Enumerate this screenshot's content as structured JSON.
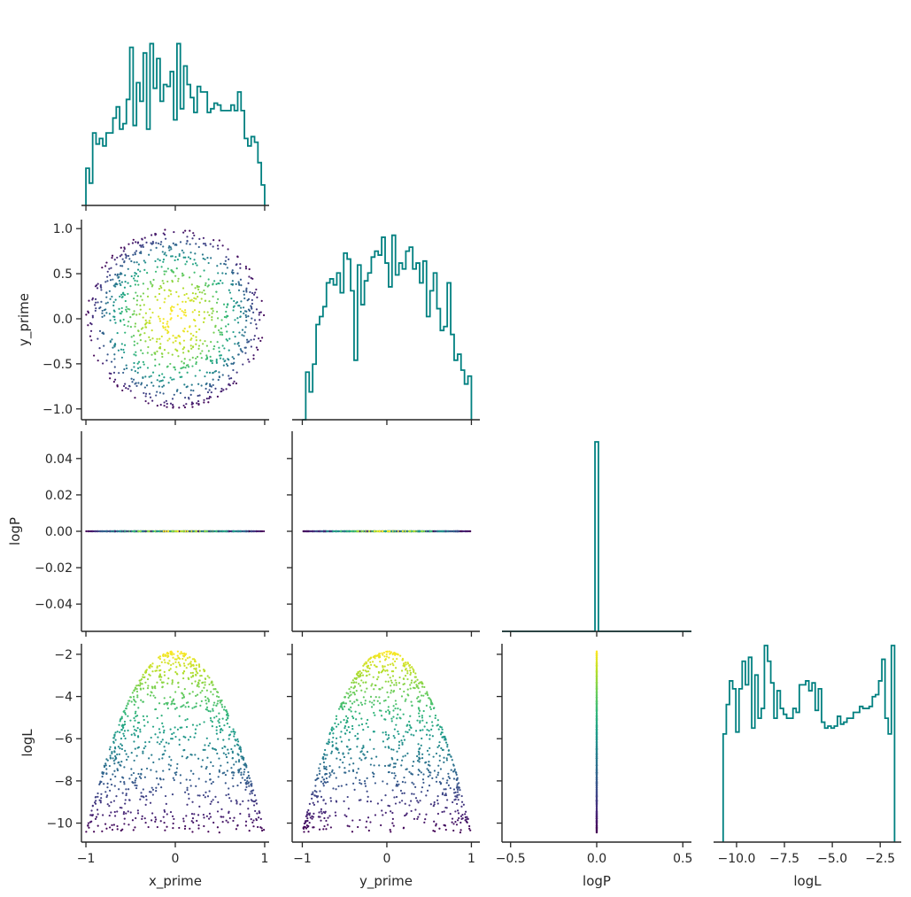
{
  "chart_data": {
    "type": "scatter",
    "layout": "corner-plot",
    "colormap": "viridis",
    "hist_color": "#008080",
    "spine_color": "#262626",
    "grid": false,
    "variables": [
      "x_prime",
      "y_prime",
      "logP",
      "logL"
    ],
    "axis_labels": {
      "x_prime": "x_prime",
      "y_prime": "y_prime",
      "logP": "logP",
      "logL": "logL"
    },
    "ranges": {
      "x_prime": [
        -1.05,
        1.05
      ],
      "y_prime": [
        -1.12,
        1.1
      ],
      "logP": [
        -0.055,
        0.055
      ],
      "logL": [
        -10.9,
        -1.5
      ]
    },
    "hist_ranges": {
      "logP": [
        -0.55,
        0.55
      ],
      "logL": [
        -11.2,
        -1.4
      ]
    },
    "ticks": {
      "x_prime": [
        {
          "v": -1,
          "label": "−1"
        },
        {
          "v": 0,
          "label": "0"
        },
        {
          "v": 1,
          "label": "1"
        }
      ],
      "y_prime": [
        {
          "v": 1.0,
          "label": "1.0"
        },
        {
          "v": 0.5,
          "label": "0.5"
        },
        {
          "v": 0.0,
          "label": "0.0"
        },
        {
          "v": -0.5,
          "label": "−0.5"
        },
        {
          "v": -1.0,
          "label": "−1.0"
        }
      ],
      "logP_y": [
        {
          "v": 0.04,
          "label": "0.04"
        },
        {
          "v": 0.02,
          "label": "0.02"
        },
        {
          "v": 0.0,
          "label": "0.00"
        },
        {
          "v": -0.02,
          "label": "−0.02"
        },
        {
          "v": -0.04,
          "label": "−0.04"
        }
      ],
      "logP_x": [
        {
          "v": -0.5,
          "label": "−0.5"
        },
        {
          "v": 0.0,
          "label": "0.0"
        },
        {
          "v": 0.5,
          "label": "0.5"
        }
      ],
      "logL_y": [
        {
          "v": -2,
          "label": "−2"
        },
        {
          "v": -4,
          "label": "−4"
        },
        {
          "v": -6,
          "label": "−6"
        },
        {
          "v": -8,
          "label": "−8"
        },
        {
          "v": -10,
          "label": "−10"
        }
      ],
      "logL_x": [
        {
          "v": -10.0,
          "label": "−10.0"
        },
        {
          "v": -7.5,
          "label": "−7.5"
        },
        {
          "v": -5.0,
          "label": "−5.0"
        },
        {
          "v": -2.5,
          "label": "−2.5"
        }
      ]
    },
    "samples": {
      "count": 1000,
      "distribution": "uniform-disk",
      "radius": 1.0,
      "logP_value": 0.0,
      "logL_formula": "-1.85 - 8.6 * (x_prime^2 + y_prime^2)"
    },
    "histograms": {
      "x_prime": {
        "edges": [
          -1.0,
          1.0
        ],
        "counts": [
          0.2,
          0.12,
          0.39,
          0.33,
          0.36,
          0.32,
          0.39,
          0.39,
          0.47,
          0.53,
          0.41,
          0.44,
          0.57,
          0.85,
          0.43,
          0.66,
          0.56,
          0.82,
          0.41,
          0.87,
          0.63,
          0.79,
          0.56,
          0.65,
          0.64,
          0.72,
          0.46,
          0.87,
          0.52,
          0.75,
          0.65,
          0.58,
          0.5,
          0.64,
          0.61,
          0.61,
          0.5,
          0.52,
          0.55,
          0.54,
          0.51,
          0.51,
          0.51,
          0.54,
          0.51,
          0.61,
          0.51,
          0.36,
          0.32,
          0.37,
          0.34,
          0.23,
          0.11
        ],
        "heights_relative": true
      },
      "y_prime": {
        "edges": [
          -1.0,
          1.0
        ],
        "counts": [
          0.0,
          0.24,
          0.14,
          0.28,
          0.48,
          0.52,
          0.57,
          0.69,
          0.71,
          0.68,
          0.74,
          0.64,
          0.84,
          0.81,
          0.65,
          0.3,
          0.78,
          0.58,
          0.7,
          0.74,
          0.82,
          0.85,
          0.83,
          0.92,
          0.79,
          0.67,
          0.93,
          0.73,
          0.79,
          0.76,
          0.85,
          0.87,
          0.76,
          0.79,
          0.69,
          0.8,
          0.52,
          0.65,
          0.74,
          0.56,
          0.45,
          0.47,
          0.69,
          0.43,
          0.3,
          0.33,
          0.25,
          0.18,
          0.22
        ],
        "heights_relative": true
      },
      "logP": {
        "edges": [
          -0.55,
          0.55
        ],
        "spike_at": 0.0,
        "spike_width": 0.02,
        "heights_relative": true
      },
      "logL": {
        "edges": [
          -10.7,
          -1.75
        ],
        "counts": [
          0.55,
          0.7,
          0.82,
          0.78,
          0.56,
          0.78,
          0.92,
          0.8,
          0.94,
          0.58,
          0.85,
          0.63,
          0.68,
          1.0,
          0.92,
          0.81,
          0.63,
          0.77,
          0.68,
          0.65,
          0.63,
          0.63,
          0.68,
          0.66,
          0.8,
          0.8,
          0.82,
          0.77,
          0.81,
          0.67,
          0.78,
          0.61,
          0.58,
          0.59,
          0.58,
          0.59,
          0.64,
          0.6,
          0.61,
          0.63,
          0.63,
          0.66,
          0.66,
          0.69,
          0.68,
          0.68,
          0.69,
          0.74,
          0.75,
          0.82,
          0.93,
          0.63,
          0.55,
          1.0
        ],
        "heights_relative": true
      }
    }
  }
}
